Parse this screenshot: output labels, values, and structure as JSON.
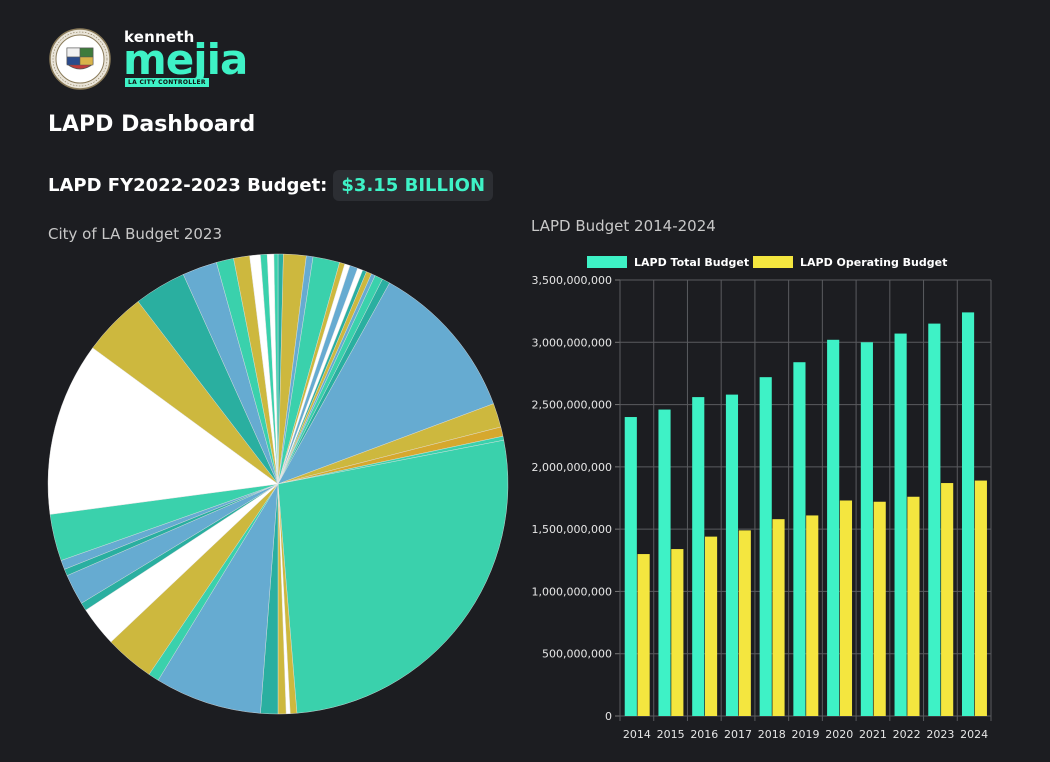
{
  "header": {
    "logo_top": "kenneth",
    "logo_main": "mejia",
    "logo_tagline": "LA CITY CONTROLLER",
    "page_title": "LAPD Dashboard",
    "budget_label": "LAPD FY2022-2023 Budget:",
    "budget_amount": "$3.15 BILLION"
  },
  "colors": {
    "teal": "#3ad1ac",
    "blue": "#66abd1",
    "gold": "#cdb83e",
    "white": "#ffffff",
    "dark_teal": "#2aafa0",
    "bar_total": "#3ef2c6",
    "bar_operating": "#f4e63f"
  },
  "chart_data": [
    {
      "type": "pie",
      "title": "City of LA Budget 2023",
      "units": "percent of total (estimated)",
      "slices": [
        {
          "value": 0.4,
          "color": "#2aafa0"
        },
        {
          "value": 1.7,
          "color": "#cdb83e"
        },
        {
          "value": 0.5,
          "color": "#66abd1"
        },
        {
          "value": 2.0,
          "color": "#3ad1ac"
        },
        {
          "value": 0.4,
          "color": "#cdb83e"
        },
        {
          "value": 0.4,
          "color": "#ffffff"
        },
        {
          "value": 0.6,
          "color": "#66abd1"
        },
        {
          "value": 0.4,
          "color": "#ffffff"
        },
        {
          "value": 0.3,
          "color": "#2aafa0"
        },
        {
          "value": 0.4,
          "color": "#cdb83e"
        },
        {
          "value": 0.3,
          "color": "#66abd1"
        },
        {
          "value": 0.6,
          "color": "#3ad1ac"
        },
        {
          "value": 0.6,
          "color": "#2aafa0"
        },
        {
          "value": 12.0,
          "color": "#66abd1"
        },
        {
          "value": 1.8,
          "color": "#cdb83e"
        },
        {
          "value": 0.7,
          "color": "#d6a82e"
        },
        {
          "value": 0.3,
          "color": "#3ad1ac"
        },
        {
          "value": 28.5,
          "color": "#3ad1ac"
        },
        {
          "value": 0.5,
          "color": "#cdb83e"
        },
        {
          "value": 0.3,
          "color": "#ffffff"
        },
        {
          "value": 0.6,
          "color": "#cdb83e"
        },
        {
          "value": 1.3,
          "color": "#2aafa0"
        },
        {
          "value": 8.0,
          "color": "#66abd1"
        },
        {
          "value": 0.8,
          "color": "#3ad1ac"
        },
        {
          "value": 3.7,
          "color": "#cdb83e"
        },
        {
          "value": 3.0,
          "color": "#ffffff"
        },
        {
          "value": 0.6,
          "color": "#2aafa0"
        },
        {
          "value": 2.3,
          "color": "#66abd1"
        },
        {
          "value": 0.5,
          "color": "#2aafa0"
        },
        {
          "value": 0.7,
          "color": "#66abd1"
        },
        {
          "value": 3.5,
          "color": "#3ad1ac"
        },
        {
          "value": 13.0,
          "color": "#ffffff"
        },
        {
          "value": 4.8,
          "color": "#cdb83e"
        },
        {
          "value": 3.9,
          "color": "#2aafa0"
        },
        {
          "value": 2.6,
          "color": "#66abd1"
        },
        {
          "value": 1.3,
          "color": "#3ad1ac"
        },
        {
          "value": 1.2,
          "color": "#cdb83e"
        },
        {
          "value": 0.8,
          "color": "#ffffff"
        },
        {
          "value": 0.5,
          "color": "#3ad1ac"
        },
        {
          "value": 0.5,
          "color": "#ffffff"
        },
        {
          "value": 0.3,
          "color": "#3ad1ac"
        }
      ]
    },
    {
      "type": "bar",
      "title": "LAPD Budget 2014-2024",
      "categories": [
        "2014",
        "2015",
        "2016",
        "2017",
        "2018",
        "2019",
        "2020",
        "2021",
        "2022",
        "2023",
        "2024"
      ],
      "series": [
        {
          "name": "LAPD Total Budget",
          "color": "#3ef2c6",
          "values": [
            2400000000,
            2460000000,
            2560000000,
            2580000000,
            2720000000,
            2840000000,
            3020000000,
            3000000000,
            3070000000,
            3150000000,
            3240000000
          ]
        },
        {
          "name": "LAPD Operating Budget",
          "color": "#f4e63f",
          "values": [
            1300000000,
            1340000000,
            1440000000,
            1490000000,
            1580000000,
            1610000000,
            1730000000,
            1720000000,
            1760000000,
            1870000000,
            1890000000
          ]
        }
      ],
      "ylim": [
        0,
        3500000000
      ],
      "yticks": [
        0,
        500000000,
        1000000000,
        1500000000,
        2000000000,
        2500000000,
        3000000000,
        3500000000
      ],
      "ytick_labels": [
        "0",
        "500,000,000",
        "1,000,000,000",
        "1,500,000,000",
        "2,000,000,000",
        "2,500,000,000",
        "3,000,000,000",
        "3,500,000,000"
      ],
      "grid": true,
      "legend": "top"
    }
  ]
}
